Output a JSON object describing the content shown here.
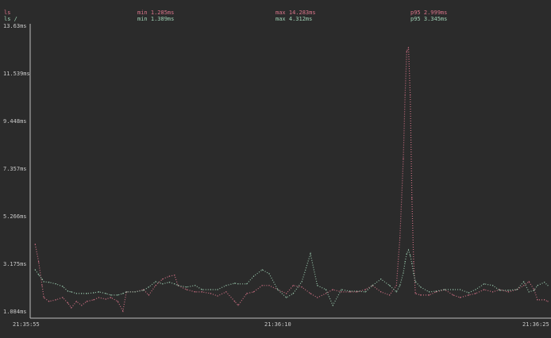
{
  "colors": {
    "background": "#2b2b2b",
    "ls": "#d9748a",
    "ls_root": "#9fd0b4",
    "axis": "#bdbdbd"
  },
  "legend": [
    {
      "name": "ls",
      "min": "min 1.285ms",
      "max": "max 14.283ms",
      "p95": "p95 2.999ms"
    },
    {
      "name": "ls /",
      "min": "min 1.389ms",
      "max": "max 4.312ms",
      "p95": "p95 3.345ms"
    }
  ],
  "chart_data": {
    "type": "line",
    "style": "dotted",
    "grid": false,
    "ylim": [
      1.084,
      13.63
    ],
    "yticks": [
      "13.63ms",
      "11.539ms",
      "9.448ms",
      "7.357ms",
      "5.266ms",
      "3.175ms",
      "1.084ms"
    ],
    "ytick_values": [
      13.63,
      11.539,
      9.448,
      7.357,
      5.266,
      3.175,
      1.084
    ],
    "xlim": [
      "21:35:55",
      "21:36:25"
    ],
    "xticks": [
      "21:35:55",
      "21:36:10",
      "21:36:25"
    ],
    "x": [
      "21:35:55.2",
      "21:35:55.4",
      "21:35:55.6",
      "21:35:55.7",
      "21:35:56.0",
      "21:35:56.4",
      "21:35:56.8",
      "21:35:57.1",
      "21:35:57.3",
      "21:35:57.6",
      "21:35:57.9",
      "21:35:58.2",
      "21:35:58.6",
      "21:35:58.9",
      "21:35:59.3",
      "21:35:59.6",
      "21:36:00.0",
      "21:36:00.3",
      "21:36:00.5",
      "21:36:01.0",
      "21:36:01.5",
      "21:36:01.8",
      "21:36:02.2",
      "21:36:02.6",
      "21:36:03.0",
      "21:36:03.3",
      "21:36:03.5",
      "21:36:04.0",
      "21:36:04.5",
      "21:36:04.9",
      "21:36:05.4",
      "21:36:05.8",
      "21:36:06.3",
      "21:36:06.8",
      "21:36:07.0",
      "21:36:07.5",
      "21:36:07.9",
      "21:36:08.4",
      "21:36:08.8",
      "21:36:09.3",
      "21:36:09.8",
      "21:36:10.2",
      "21:36:10.7",
      "21:36:11.2",
      "21:36:11.6",
      "21:36:12.1",
      "21:36:12.5",
      "21:36:13.0",
      "21:36:13.5",
      "21:36:13.9",
      "21:36:14.4",
      "21:36:14.8",
      "21:36:15.3",
      "21:36:15.8",
      "21:36:16.2",
      "21:36:16.4",
      "21:36:16.6",
      "21:36:16.7",
      "21:36:16.8",
      "21:36:16.9",
      "21:36:17.0",
      "21:36:17.1",
      "21:36:17.2",
      "21:36:17.3",
      "21:36:17.6",
      "21:36:18.1",
      "21:36:18.5",
      "21:36:19.0",
      "21:36:19.5",
      "21:36:19.9",
      "21:36:20.4",
      "21:36:20.8",
      "21:36:21.3",
      "21:36:21.8",
      "21:36:22.2",
      "21:36:22.7",
      "21:36:23.2",
      "21:36:23.6",
      "21:36:23.9",
      "21:36:24.2",
      "21:36:24.4",
      "21:36:24.8",
      "21:36:25.0"
    ],
    "series": [
      {
        "name": "ls",
        "color": "#d9748a",
        "values": [
          4.05,
          3.28,
          2.24,
          1.71,
          1.54,
          1.61,
          1.71,
          1.47,
          1.26,
          1.54,
          1.37,
          1.54,
          1.61,
          1.71,
          1.64,
          1.71,
          1.54,
          1.12,
          1.96,
          1.96,
          2.06,
          1.82,
          2.24,
          2.52,
          2.65,
          2.69,
          2.24,
          2.06,
          1.96,
          1.96,
          1.89,
          1.78,
          1.96,
          1.54,
          1.37,
          1.89,
          1.96,
          2.24,
          2.24,
          2.06,
          1.89,
          2.24,
          2.17,
          1.89,
          1.71,
          1.89,
          2.06,
          1.96,
          1.96,
          1.96,
          2.06,
          2.24,
          1.96,
          1.82,
          2.24,
          4.33,
          7.81,
          10.6,
          12.52,
          12.69,
          10.6,
          6.07,
          3.28,
          1.89,
          1.82,
          1.82,
          1.96,
          2.06,
          1.82,
          1.71,
          1.82,
          1.89,
          2.06,
          1.96,
          2.06,
          1.96,
          2.06,
          2.24,
          2.41,
          2.06,
          1.61,
          1.61,
          1.54
        ]
      },
      {
        "name": "ls /",
        "color": "#9fd0b4",
        "values": [
          2.93,
          2.72,
          2.52,
          2.41,
          2.38,
          2.31,
          2.2,
          1.99,
          1.96,
          1.89,
          1.89,
          1.89,
          1.92,
          1.96,
          1.89,
          1.82,
          1.82,
          1.89,
          1.96,
          1.96,
          2.03,
          2.17,
          2.41,
          2.31,
          2.38,
          2.31,
          2.24,
          2.17,
          2.24,
          2.06,
          2.06,
          2.06,
          2.24,
          2.34,
          2.31,
          2.31,
          2.65,
          2.93,
          2.76,
          2.06,
          1.71,
          1.89,
          2.41,
          3.63,
          2.24,
          2.06,
          1.37,
          2.06,
          1.99,
          1.99,
          1.96,
          2.24,
          2.52,
          2.24,
          1.96,
          2.24,
          2.79,
          3.28,
          3.63,
          3.8,
          3.56,
          3.21,
          2.76,
          2.41,
          2.17,
          1.96,
          1.99,
          2.06,
          2.06,
          2.06,
          1.92,
          2.06,
          2.31,
          2.24,
          2.03,
          2.03,
          2.06,
          2.41,
          1.96,
          2.03,
          2.24,
          2.38,
          2.24
        ]
      }
    ]
  }
}
